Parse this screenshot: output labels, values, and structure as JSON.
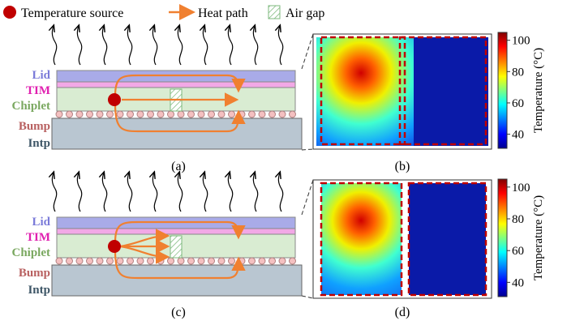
{
  "legend": {
    "source": "Temperature source",
    "path": "Heat path",
    "gap": "Air gap"
  },
  "layers": {
    "lid": "Lid",
    "tim": "TIM",
    "chiplet": "Chiplet",
    "bump": "Bump",
    "intp": "Intp"
  },
  "captions": {
    "a": "(a)",
    "b": "(b)",
    "c": "(c)",
    "d": "(d)"
  },
  "colorbar": {
    "label": "Temperature (°C)",
    "lim": [
      31,
      105
    ],
    "ticks": [
      40,
      60,
      80,
      100
    ]
  }
}
